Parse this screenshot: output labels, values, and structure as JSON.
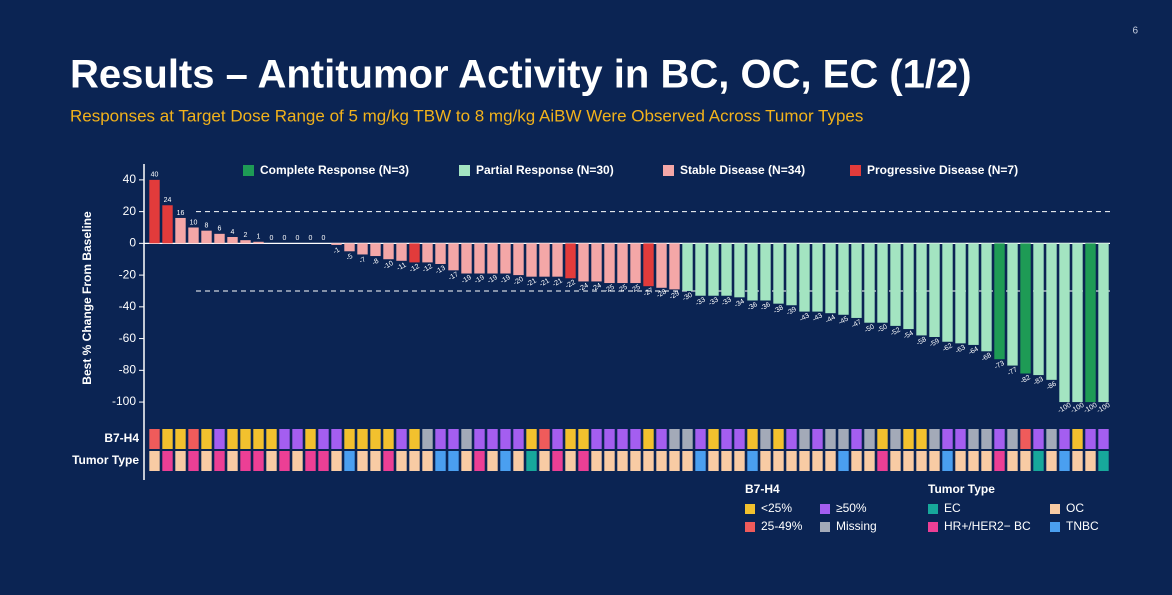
{
  "page_number": "6",
  "header": {
    "title": "Results – Antitumor Activity in BC, OC, EC (1/2)",
    "subtitle": "Responses at Target Dose Range of 5 mg/kg TBW to 8 mg/kg AiBW Were Observed Across Tumor Types"
  },
  "chart_data": {
    "type": "waterfall",
    "y_label": "Best % Change From Baseline",
    "values": [
      40,
      24,
      16,
      10,
      8,
      6,
      4,
      2,
      1,
      0,
      0,
      0,
      0,
      0,
      -1,
      -5,
      -7,
      -8,
      -10,
      -11,
      -12,
      -12,
      -13,
      -17,
      -19,
      -19,
      -19,
      -19,
      -20,
      -21,
      -21,
      -21,
      -22,
      -24,
      -24,
      -25,
      -25,
      -25,
      -27,
      -28,
      -29,
      -30,
      -33,
      -33,
      -33,
      -34,
      -36,
      -36,
      -38,
      -39,
      -43,
      -43,
      -44,
      -45,
      -47,
      -50,
      -50,
      -52,
      -54,
      -58,
      -59,
      -62,
      -63,
      -64,
      -68,
      -73,
      -77,
      -82,
      -83,
      -86,
      -100,
      -100,
      -100,
      -100
    ],
    "colors": [
      "#e23b3b",
      "#e23b3b",
      "#f4a7a7",
      "#f4a7a7",
      "#f4a7a7",
      "#f4a7a7",
      "#f4a7a7",
      "#f4a7a7",
      "#f4a7a7",
      "#f4a7a7",
      "#f4a7a7",
      "#e23b3b",
      "#e23b3b",
      "#f4a7a7",
      "#f4a7a7",
      "#f4a7a7",
      "#f4a7a7",
      "#f4a7a7",
      "#f4a7a7",
      "#f4a7a7",
      "#e23b3b",
      "#f4a7a7",
      "#f4a7a7",
      "#f4a7a7",
      "#f4a7a7",
      "#f4a7a7",
      "#f4a7a7",
      "#f4a7a7",
      "#f4a7a7",
      "#f4a7a7",
      "#f4a7a7",
      "#f4a7a7",
      "#e23b3b",
      "#f4a7a7",
      "#f4a7a7",
      "#f4a7a7",
      "#f4a7a7",
      "#f4a7a7",
      "#e23b3b",
      "#f4a7a7",
      "#f4a7a7",
      "#a3e4c1",
      "#a3e4c1",
      "#a3e4c1",
      "#a3e4c1",
      "#a3e4c1",
      "#a3e4c1",
      "#a3e4c1",
      "#a3e4c1",
      "#a3e4c1",
      "#a3e4c1",
      "#a3e4c1",
      "#a3e4c1",
      "#a3e4c1",
      "#a3e4c1",
      "#a3e4c1",
      "#a3e4c1",
      "#a3e4c1",
      "#a3e4c1",
      "#a3e4c1",
      "#a3e4c1",
      "#a3e4c1",
      "#a3e4c1",
      "#a3e4c1",
      "#a3e4c1",
      "#1e9b55",
      "#a3e4c1",
      "#1e9b55",
      "#a3e4c1",
      "#a3e4c1",
      "#a3e4c1",
      "#a3e4c1",
      "#1e9b55",
      "#a3e4c1"
    ],
    "legend": [
      {
        "label": "Complete Response (N=3)",
        "color": "#1e9b55"
      },
      {
        "label": "Partial Response (N=30)",
        "color": "#a3e4c1"
      },
      {
        "label": "Stable Disease (N=34)",
        "color": "#f4a7a7"
      },
      {
        "label": "Progressive Disease (N=7)",
        "color": "#e23b3b"
      }
    ],
    "ylim": [
      -105,
      50
    ],
    "yticks": [
      40,
      20,
      0,
      -20,
      -40,
      -60,
      -80,
      -100
    ],
    "reference_lines": [
      20,
      -30
    ],
    "rows": [
      {
        "label": "B7-H4",
        "colors": [
          "#ef5b5b",
          "#f2c12e",
          "#f2c12e",
          "#ef5b5b",
          "#f2c12e",
          "#a45ef0",
          "#f2c12e",
          "#f2c12e",
          "#f2c12e",
          "#f2c12e",
          "#a45ef0",
          "#a45ef0",
          "#f2c12e",
          "#a45ef0",
          "#a45ef0",
          "#f2c12e",
          "#f2c12e",
          "#f2c12e",
          "#f2c12e",
          "#a45ef0",
          "#f2c12e",
          "#a3aab8",
          "#a45ef0",
          "#a45ef0",
          "#a3aab8",
          "#a45ef0",
          "#a45ef0",
          "#a45ef0",
          "#a45ef0",
          "#f2c12e",
          "#ef5b5b",
          "#a45ef0",
          "#f2c12e",
          "#f2c12e",
          "#a45ef0",
          "#a45ef0",
          "#a45ef0",
          "#a45ef0",
          "#f2c12e",
          "#a45ef0",
          "#a3aab8",
          "#a3aab8",
          "#a45ef0",
          "#f2c12e",
          "#a45ef0",
          "#a45ef0",
          "#f2c12e",
          "#a3aab8",
          "#f2c12e",
          "#a45ef0",
          "#a3aab8",
          "#a45ef0",
          "#a3aab8",
          "#a3aab8",
          "#a45ef0",
          "#a3aab8",
          "#f2c12e",
          "#a3aab8",
          "#f2c12e",
          "#f2c12e",
          "#a3aab8",
          "#a45ef0",
          "#a45ef0",
          "#a3aab8",
          "#a3aab8",
          "#a45ef0",
          "#a3aab8",
          "#ef5b5b",
          "#a45ef0",
          "#a3aab8",
          "#a45ef0",
          "#f2c12e",
          "#a45ef0",
          "#a45ef0"
        ]
      },
      {
        "label": "Tumor Type",
        "colors": [
          "#f8cba4",
          "#ec3f95",
          "#f8cba4",
          "#ec3f95",
          "#f8cba4",
          "#ec3f95",
          "#f8cba4",
          "#ec3f95",
          "#ec3f95",
          "#f8cba4",
          "#ec3f95",
          "#f8cba4",
          "#ec3f95",
          "#ec3f95",
          "#f8cba4",
          "#4a9ff0",
          "#f8cba4",
          "#f8cba4",
          "#ec3f95",
          "#f8cba4",
          "#f8cba4",
          "#f8cba4",
          "#4a9ff0",
          "#4a9ff0",
          "#f8cba4",
          "#ec3f95",
          "#f8cba4",
          "#4a9ff0",
          "#f8cba4",
          "#17a89b",
          "#f8cba4",
          "#ec3f95",
          "#f8cba4",
          "#ec3f95",
          "#f8cba4",
          "#f8cba4",
          "#f8cba4",
          "#f8cba4",
          "#f8cba4",
          "#f8cba4",
          "#f8cba4",
          "#f8cba4",
          "#4a9ff0",
          "#f8cba4",
          "#f8cba4",
          "#f8cba4",
          "#4a9ff0",
          "#f8cba4",
          "#f8cba4",
          "#f8cba4",
          "#f8cba4",
          "#f8cba4",
          "#f8cba4",
          "#4a9ff0",
          "#f8cba4",
          "#f8cba4",
          "#ec3f95",
          "#f8cba4",
          "#f8cba4",
          "#f8cba4",
          "#f8cba4",
          "#4a9ff0",
          "#f8cba4",
          "#f8cba4",
          "#f8cba4",
          "#ec3f95",
          "#f8cba4",
          "#f8cba4",
          "#17a89b",
          "#f8cba4",
          "#4a9ff0",
          "#f8cba4",
          "#f8cba4",
          "#17a89b"
        ]
      }
    ],
    "row_legends": [
      {
        "title": "B7-H4",
        "items": [
          {
            "label": "<25%",
            "color": "#f2c12e"
          },
          {
            "label": "≥50%",
            "color": "#a45ef0"
          },
          {
            "label": "25-49%",
            "color": "#ef5b5b"
          },
          {
            "label": "Missing",
            "color": "#a3aab8"
          }
        ]
      },
      {
        "title": "Tumor Type",
        "items": [
          {
            "label": "EC",
            "color": "#17a89b"
          },
          {
            "label": "OC",
            "color": "#f8cba4"
          },
          {
            "label": "HR+/HER2− BC",
            "color": "#ec3f95"
          },
          {
            "label": "TNBC",
            "color": "#4a9ff0"
          }
        ]
      }
    ]
  }
}
